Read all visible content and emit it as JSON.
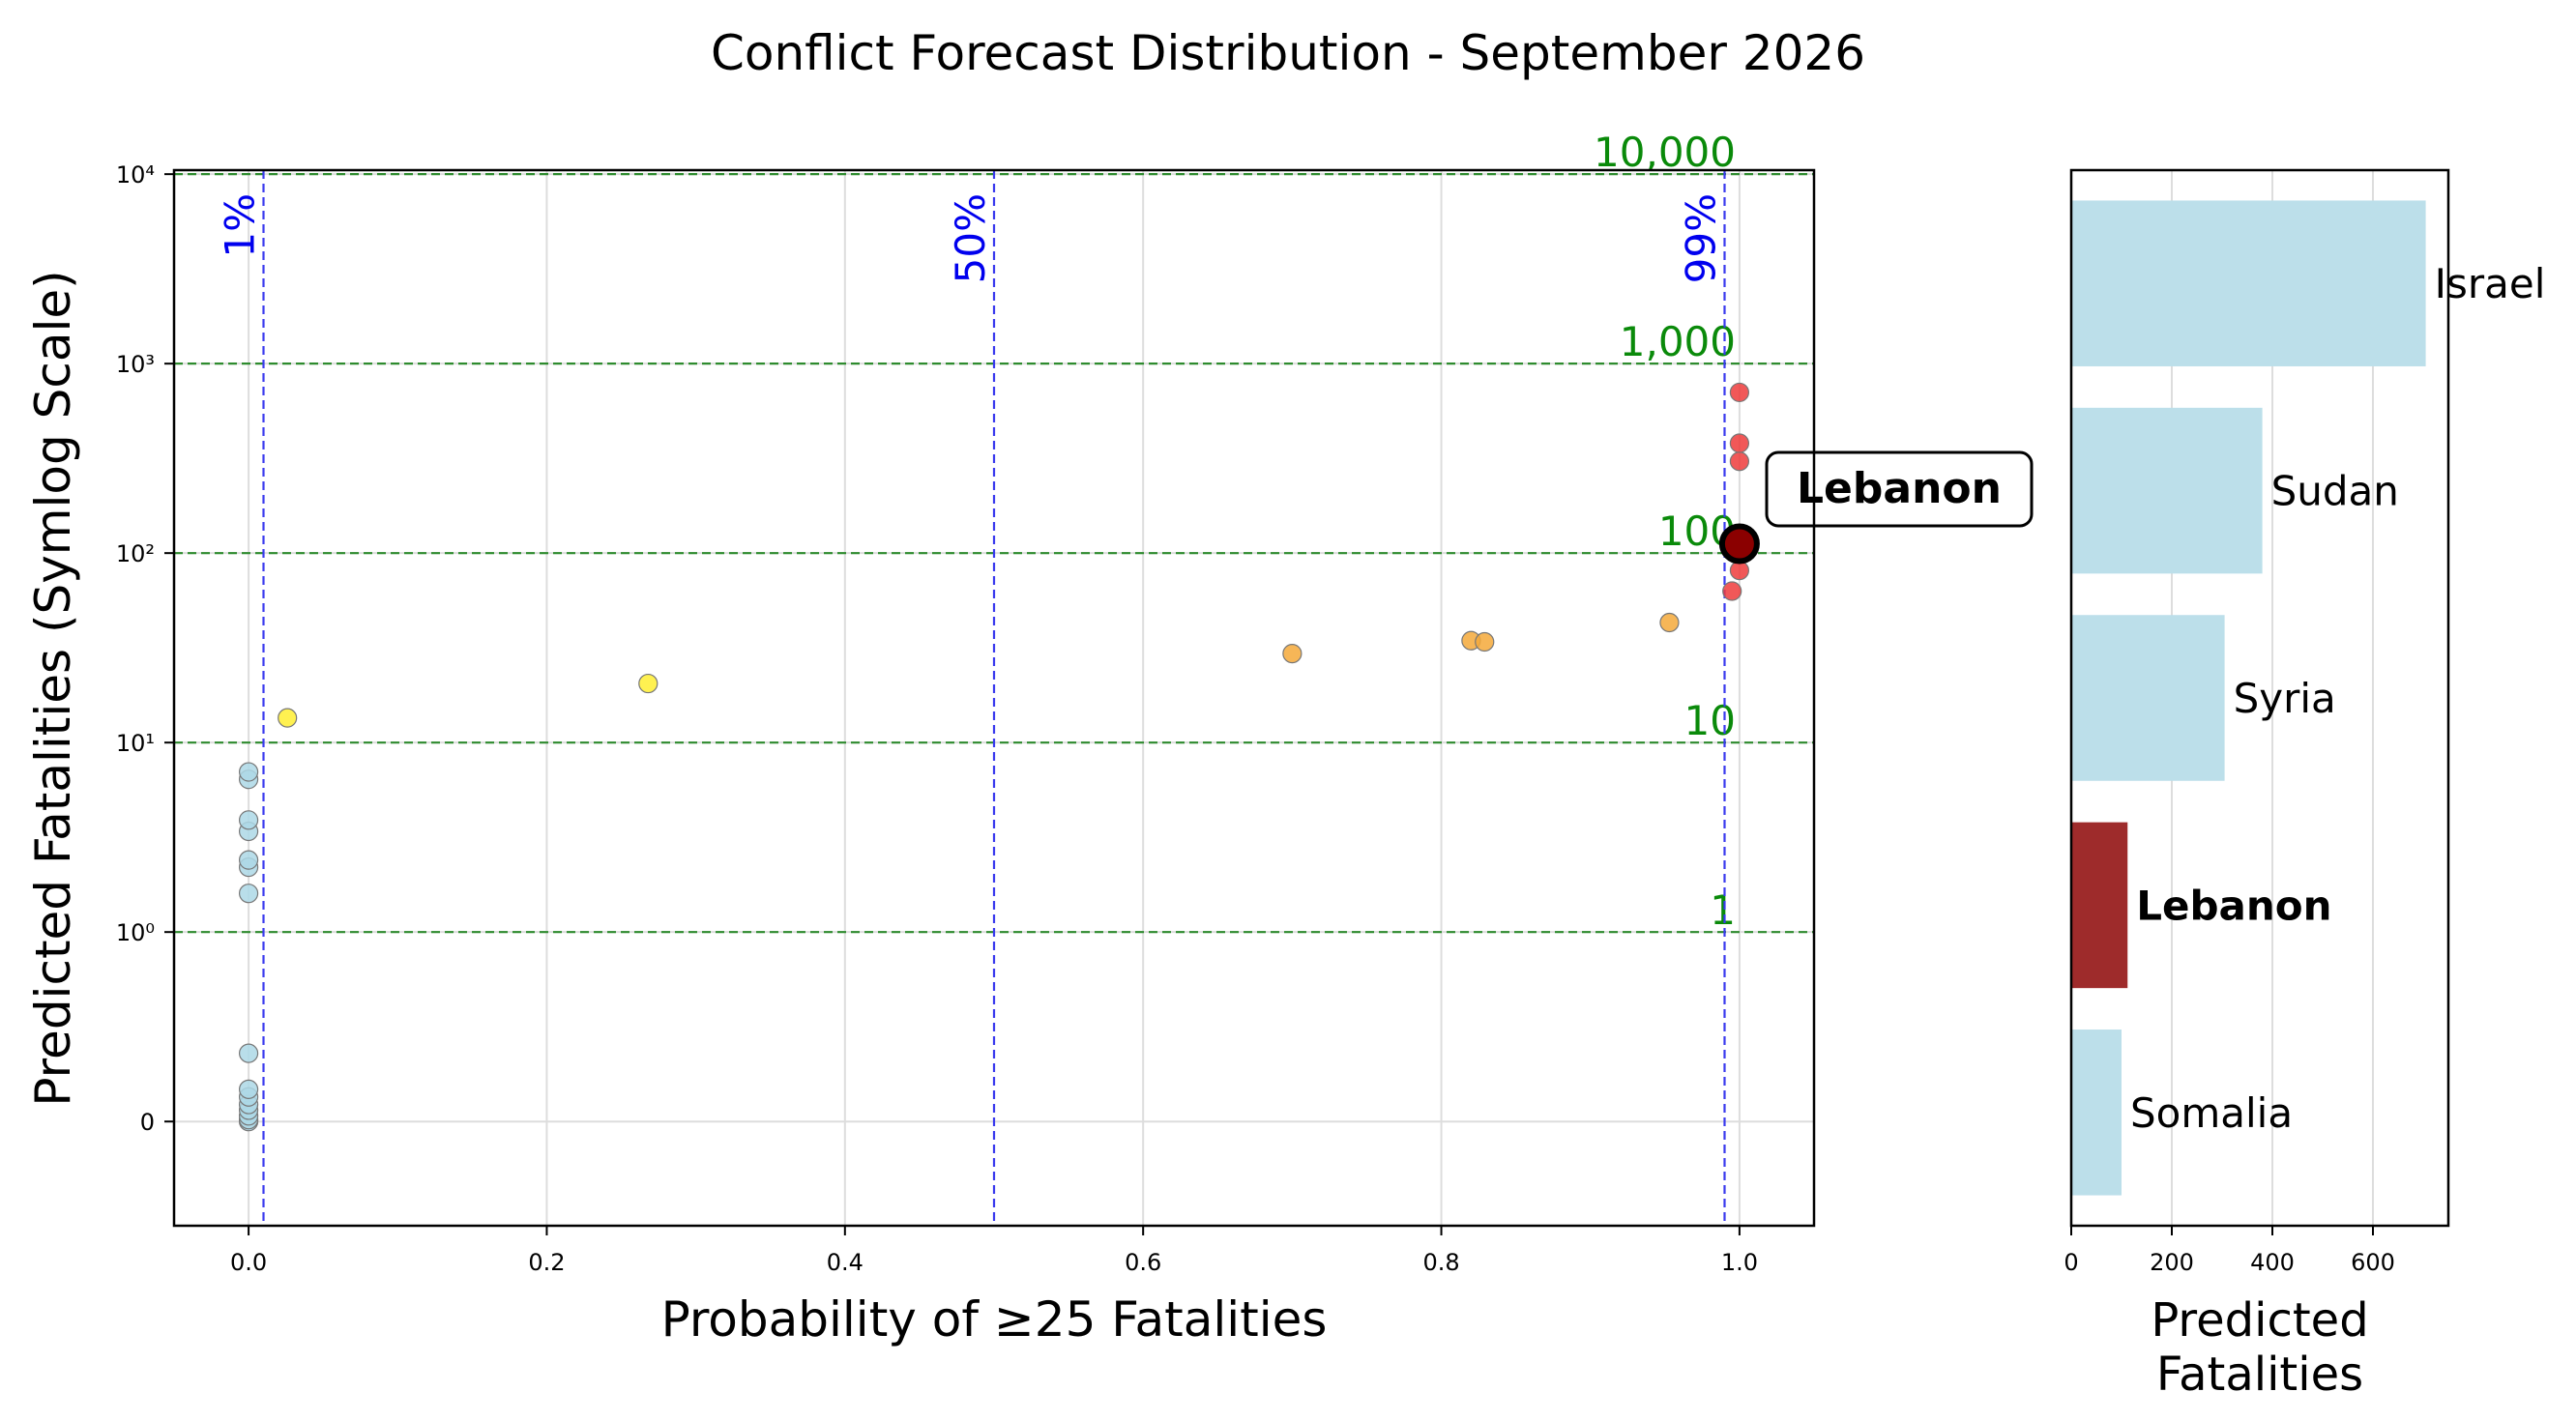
{
  "title": "Conflict Forecast Distribution - September 2026",
  "colors": {
    "axis": "#000000",
    "grid": "#dddddd",
    "prob_line": "#3a3aee",
    "prob_text": "#0000ee",
    "fat_line": "#2e8b2e",
    "fat_text": "#0a8a0a",
    "highlight": "#9e2b2b",
    "bar": "#bcdfea",
    "point_blue": "#add8e6",
    "point_yellow": "#ffee33",
    "point_orange": "#f5a93a",
    "point_red": "#ee3b3b",
    "point_edge": "#777777",
    "highlight_point": "#8b0000"
  },
  "chart_data": [
    {
      "type": "scatter",
      "xlabel": "Probability of ≥25 Fatalities",
      "ylabel": "Predicted Fatalities (Symlog Scale)",
      "yscale": "symlog",
      "xlim": [
        -0.05,
        1.05
      ],
      "ylim": [
        -0.55,
        10500
      ],
      "x_ticks": [
        {
          "value": 0.0,
          "label": "0.0"
        },
        {
          "value": 0.2,
          "label": "0.2"
        },
        {
          "value": 0.4,
          "label": "0.4"
        },
        {
          "value": 0.6,
          "label": "0.6"
        },
        {
          "value": 0.8,
          "label": "0.8"
        },
        {
          "value": 1.0,
          "label": "1.0"
        }
      ],
      "y_ticks": [
        {
          "value": 0,
          "label": "0"
        },
        {
          "value": 1,
          "label": "10⁰"
        },
        {
          "value": 10,
          "label": "10¹"
        },
        {
          "value": 100,
          "label": "10²"
        },
        {
          "value": 1000,
          "label": "10³"
        },
        {
          "value": 10000,
          "label": "10⁴"
        }
      ],
      "grid": true,
      "probability_lines": [
        {
          "x": 0.01,
          "label": "1%"
        },
        {
          "x": 0.5,
          "label": "50%"
        },
        {
          "x": 0.99,
          "label": "99%"
        }
      ],
      "fatality_lines": [
        {
          "y": 1,
          "label": "1"
        },
        {
          "y": 10,
          "label": "10"
        },
        {
          "y": 100,
          "label": "100"
        },
        {
          "y": 1000,
          "label": "1,000"
        },
        {
          "y": 10000,
          "label": "10,000"
        }
      ],
      "points": [
        {
          "x": 0.0,
          "y": 0.0,
          "group": "blue"
        },
        {
          "x": 0.0,
          "y": 0.01,
          "group": "blue"
        },
        {
          "x": 0.0,
          "y": 0.03,
          "group": "blue"
        },
        {
          "x": 0.0,
          "y": 0.06,
          "group": "blue"
        },
        {
          "x": 0.0,
          "y": 0.09,
          "group": "blue"
        },
        {
          "x": 0.0,
          "y": 0.13,
          "group": "blue"
        },
        {
          "x": 0.0,
          "y": 0.17,
          "group": "blue"
        },
        {
          "x": 0.0,
          "y": 0.36,
          "group": "blue"
        },
        {
          "x": 0.0,
          "y": 1.6,
          "group": "blue"
        },
        {
          "x": 0.0,
          "y": 2.2,
          "group": "blue"
        },
        {
          "x": 0.0,
          "y": 2.4,
          "group": "blue"
        },
        {
          "x": 0.0,
          "y": 3.4,
          "group": "blue"
        },
        {
          "x": 0.0,
          "y": 3.9,
          "group": "blue"
        },
        {
          "x": 0.0,
          "y": 6.4,
          "group": "blue"
        },
        {
          "x": 0.0,
          "y": 7.0,
          "group": "blue"
        },
        {
          "x": 0.026,
          "y": 13.5,
          "group": "yellow"
        },
        {
          "x": 0.268,
          "y": 20.5,
          "group": "yellow"
        },
        {
          "x": 0.7,
          "y": 29.5,
          "group": "orange"
        },
        {
          "x": 0.82,
          "y": 34.5,
          "group": "orange"
        },
        {
          "x": 0.829,
          "y": 34.0,
          "group": "orange"
        },
        {
          "x": 0.953,
          "y": 43.0,
          "group": "orange"
        },
        {
          "x": 0.995,
          "y": 63.0,
          "group": "red"
        },
        {
          "x": 1.0,
          "y": 81.0,
          "group": "red"
        },
        {
          "x": 1.0,
          "y": 305.0,
          "group": "red"
        },
        {
          "x": 1.0,
          "y": 380.0,
          "group": "red"
        },
        {
          "x": 1.0,
          "y": 705.0,
          "group": "red"
        }
      ],
      "highlight": {
        "name": "Lebanon",
        "x": 1.0,
        "y": 112
      }
    },
    {
      "type": "bar",
      "orientation": "horizontal",
      "xlabel": "Predicted\nFatalities",
      "xlim": [
        0,
        750
      ],
      "x_ticks": [
        {
          "value": 0,
          "label": "0"
        },
        {
          "value": 200,
          "label": "200"
        },
        {
          "value": 400,
          "label": "400"
        },
        {
          "value": 600,
          "label": "600"
        }
      ],
      "grid": true,
      "categories": [
        "Israel",
        "Sudan",
        "Syria",
        "Lebanon",
        "Somalia"
      ],
      "values": [
        705,
        380,
        305,
        112,
        100
      ],
      "highlight": "Lebanon"
    }
  ]
}
